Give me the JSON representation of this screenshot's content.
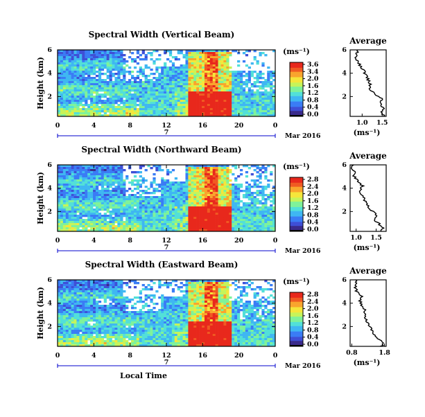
{
  "figure": {
    "xlabel": "Local Time",
    "date_label": "Mar 2016",
    "day_label": "7",
    "colorbar_unit": "(ms⁻¹)",
    "avg_title": "Average",
    "avg_xlabel": "(ms⁻¹)",
    "ylabel": "Height (km)"
  },
  "colors": {
    "colormap": [
      "#000000",
      "#3a2b8c",
      "#3f4fd6",
      "#3a7cf5",
      "#3fb7f2",
      "#52e0d8",
      "#7ff29a",
      "#c6f45a",
      "#f5e63b",
      "#f9a52d",
      "#f05a22",
      "#e8281c"
    ],
    "ink": "#000000",
    "axis_blue": "#0000cc"
  },
  "chart_data": [
    {
      "type": "heatmap",
      "title": "Spectral Width (Vertical Beam)",
      "x_ticks": [
        "0",
        "4",
        "8",
        "12",
        "16",
        "20",
        "0"
      ],
      "x_range_hours": [
        0,
        24
      ],
      "y_ticks": [
        "6",
        "4",
        "2"
      ],
      "y_range_km": [
        0.3,
        6
      ],
      "colorbar_ticks": [
        "3.6",
        "3.4",
        "2.0",
        "1.6",
        "1.2",
        "0.8",
        "0.4",
        "0.0"
      ],
      "colorbar_range": [
        0,
        3.6
      ],
      "average_profile": {
        "title": "Average",
        "x_ticks": [
          "1.0",
          "1.5"
        ],
        "x_range": [
          0.7,
          1.6
        ],
        "y_ticks": [
          "6",
          "4",
          "2"
        ],
        "y_range": [
          0.3,
          6
        ],
        "height_km": [
          0.3,
          0.6,
          1.0,
          1.4,
          1.8,
          2.2,
          2.6,
          3.0,
          3.4,
          3.8,
          4.2,
          4.6,
          5.0,
          5.4,
          5.8,
          6.0
        ],
        "width_ms": [
          1.55,
          1.5,
          1.52,
          1.45,
          1.5,
          1.3,
          1.22,
          1.2,
          1.15,
          1.1,
          1.05,
          0.95,
          0.9,
          0.85,
          0.88,
          0.85
        ]
      }
    },
    {
      "type": "heatmap",
      "title": "Spectral Width (Northward Beam)",
      "x_ticks": [
        "0",
        "4",
        "8",
        "12",
        "16",
        "20",
        "0"
      ],
      "x_range_hours": [
        0,
        24
      ],
      "y_ticks": [
        "6",
        "4",
        "2"
      ],
      "y_range_km": [
        0.3,
        6
      ],
      "colorbar_ticks": [
        "2.8",
        "2.4",
        "2.0",
        "1.6",
        "1.2",
        "0.8",
        "0.4",
        "0.0"
      ],
      "colorbar_range": [
        0,
        2.8
      ],
      "average_profile": {
        "title": "Average",
        "x_ticks": [
          "1.0",
          "1.5"
        ],
        "x_range": [
          0.85,
          1.75
        ],
        "y_ticks": [
          "6",
          "4",
          "2"
        ],
        "y_range": [
          0.3,
          6
        ],
        "height_km": [
          0.3,
          0.6,
          1.0,
          1.4,
          1.8,
          2.2,
          2.6,
          3.0,
          3.4,
          3.8,
          4.2,
          4.6,
          5.0,
          5.4,
          5.8,
          6.0
        ],
        "width_ms": [
          1.6,
          1.7,
          1.55,
          1.45,
          1.5,
          1.35,
          1.25,
          1.2,
          1.15,
          1.1,
          1.15,
          1.05,
          0.95,
          0.95,
          0.9,
          0.9
        ]
      }
    },
    {
      "type": "heatmap",
      "title": "Spectral Width (Eastward Beam)",
      "x_ticks": [
        "0",
        "4",
        "8",
        "12",
        "16",
        "20",
        "0"
      ],
      "x_range_hours": [
        0,
        24
      ],
      "y_ticks": [
        "6",
        "4",
        "2"
      ],
      "y_range_km": [
        0.3,
        6
      ],
      "colorbar_ticks": [
        "2.8",
        "2.4",
        "2.0",
        "1.6",
        "1.2",
        "0.8",
        "0.4",
        "0.0"
      ],
      "colorbar_range": [
        0,
        2.8
      ],
      "average_profile": {
        "title": "Average",
        "x_ticks": [
          "0.8",
          "1.8"
        ],
        "x_range": [
          0.75,
          1.85
        ],
        "y_ticks": [
          "6",
          "4",
          "2"
        ],
        "y_range": [
          0.3,
          6
        ],
        "height_km": [
          0.3,
          0.6,
          1.0,
          1.4,
          1.8,
          2.2,
          2.6,
          3.0,
          3.4,
          3.8,
          4.2,
          4.6,
          5.0,
          5.4,
          5.8,
          6.0
        ],
        "width_ms": [
          1.7,
          1.8,
          1.55,
          1.45,
          1.4,
          1.3,
          1.25,
          1.2,
          1.2,
          1.1,
          1.05,
          1.1,
          0.95,
          0.9,
          0.95,
          0.9
        ]
      }
    }
  ]
}
